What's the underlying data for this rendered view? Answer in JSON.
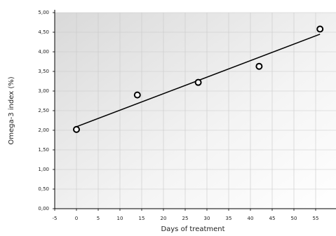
{
  "chart_data": {
    "type": "scatter",
    "xlabel": "Days of treatment",
    "ylabel": "Omega-3 index (%)",
    "series": [
      {
        "x": [
          0,
          14,
          28,
          42,
          56
        ],
        "values": [
          2.02,
          2.9,
          3.22,
          3.63,
          4.58
        ],
        "color": "#000000"
      }
    ],
    "trendline": {
      "x": [
        0,
        56
      ],
      "values": [
        2.09,
        4.45
      ],
      "color": "#000000"
    },
    "xlim": [
      -5,
      60
    ],
    "xticks": [
      -5,
      0,
      5,
      10,
      15,
      20,
      25,
      30,
      35,
      40,
      45,
      50,
      55
    ],
    "ylim": [
      0,
      5
    ],
    "yticks": [
      {
        "value": 0,
        "label": "0,00"
      },
      {
        "value": 0.5,
        "label": "0,50"
      },
      {
        "value": 1,
        "label": "1,00"
      },
      {
        "value": 1.5,
        "label": "1,50"
      },
      {
        "value": 2,
        "label": "2,00"
      },
      {
        "value": 2.5,
        "label": "2,50"
      },
      {
        "value": 3,
        "label": "3,00"
      },
      {
        "value": 3.5,
        "label": "3,50"
      },
      {
        "value": 4,
        "label": "4,00"
      },
      {
        "value": 4.5,
        "label": "4,50"
      },
      {
        "value": 5,
        "label": "5,00"
      }
    ],
    "grid": true
  }
}
